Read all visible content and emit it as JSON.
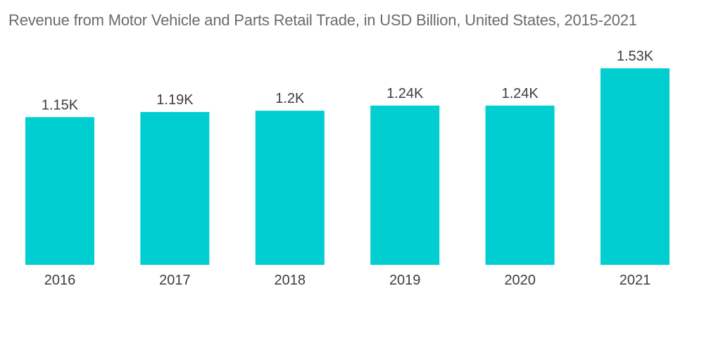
{
  "chart_data": {
    "type": "bar",
    "title": "Revenue from Motor Vehicle and Parts Retail Trade, in USD Billion, United States, 2015-2021",
    "categories": [
      "2016",
      "2017",
      "2018",
      "2019",
      "2020",
      "2021"
    ],
    "values": [
      1150,
      1190,
      1200,
      1240,
      1240,
      1530
    ],
    "value_labels": [
      "1.15K",
      "1.19K",
      "1.2K",
      "1.24K",
      "1.24K",
      "1.53K"
    ],
    "xlabel": "",
    "ylabel": "",
    "ylim": [
      0,
      1700
    ],
    "grid": false,
    "legend": "none",
    "bar_color": "#00CED1"
  }
}
